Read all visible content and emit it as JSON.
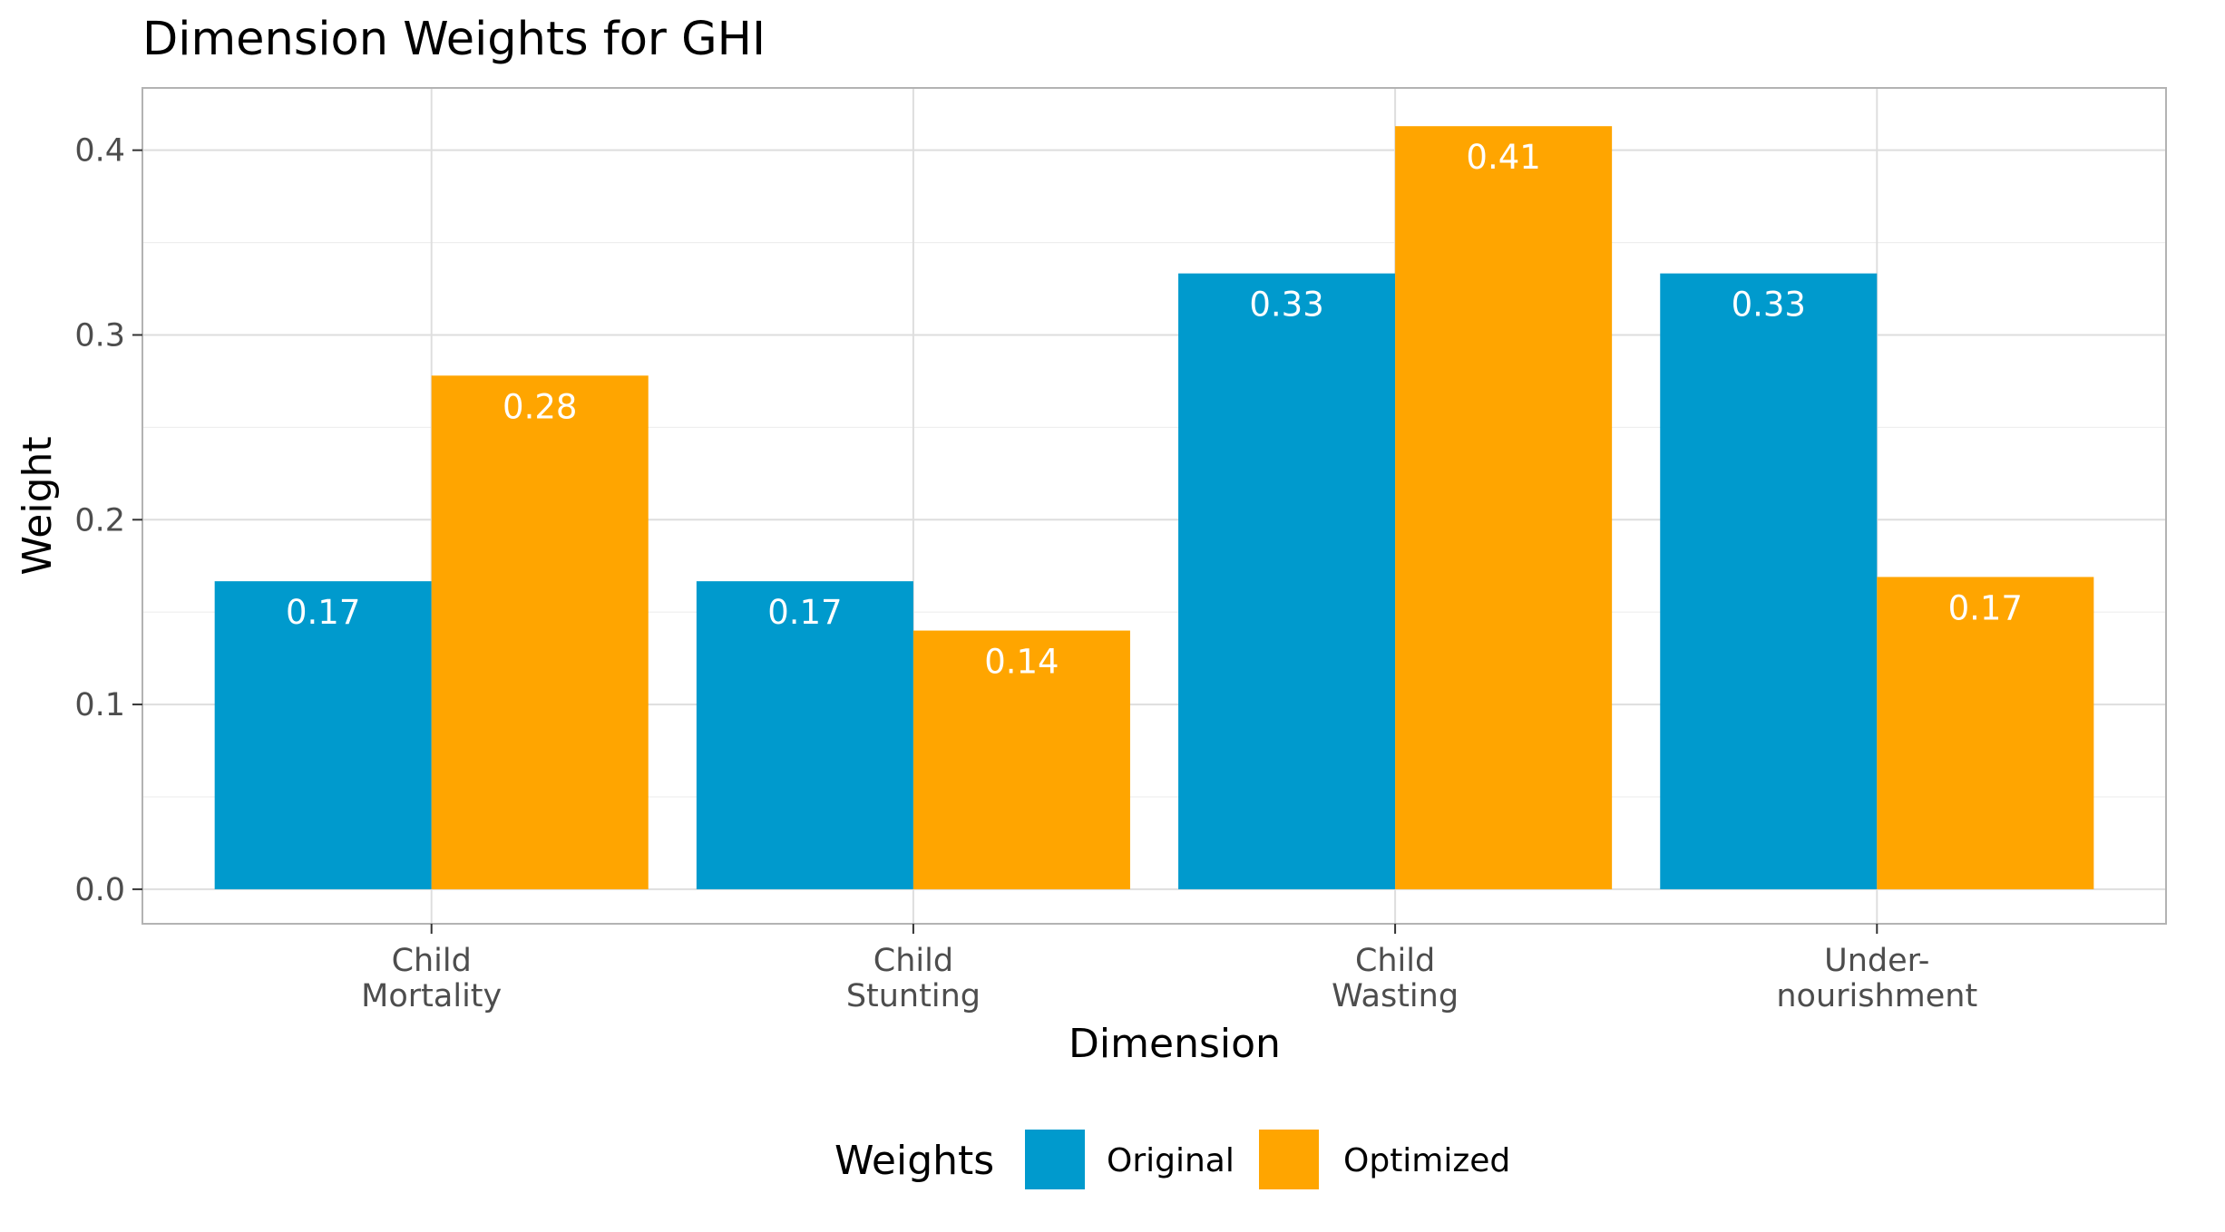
{
  "chart_data": {
    "type": "bar",
    "title": "Dimension Weights for GHI",
    "xlabel": "Dimension",
    "ylabel": "Weight",
    "categories": [
      [
        "Child",
        "Mortality"
      ],
      [
        "Child",
        "Stunting"
      ],
      [
        "Child",
        "Wasting"
      ],
      [
        "Under-",
        "nourishment"
      ]
    ],
    "series": [
      {
        "name": "Original",
        "color": "#009ACD",
        "values": [
          0.1667,
          0.1667,
          0.3333,
          0.3333
        ],
        "labels": [
          "0.17",
          "0.17",
          "0.33",
          "0.33"
        ]
      },
      {
        "name": "Optimized",
        "color": "#FFA500",
        "values": [
          0.278,
          0.14,
          0.413,
          0.169
        ],
        "labels": [
          "0.28",
          "0.14",
          "0.41",
          "0.17"
        ]
      }
    ],
    "ylim": [
      -0.0187,
      0.4337
    ],
    "yticks": [
      "0.0",
      "0.1",
      "0.2",
      "0.3",
      "0.4"
    ],
    "ytick_values": [
      0.0,
      0.1,
      0.2,
      0.3,
      0.4
    ],
    "grid": true,
    "legend": {
      "title": "Weights",
      "position": "bottom"
    }
  }
}
